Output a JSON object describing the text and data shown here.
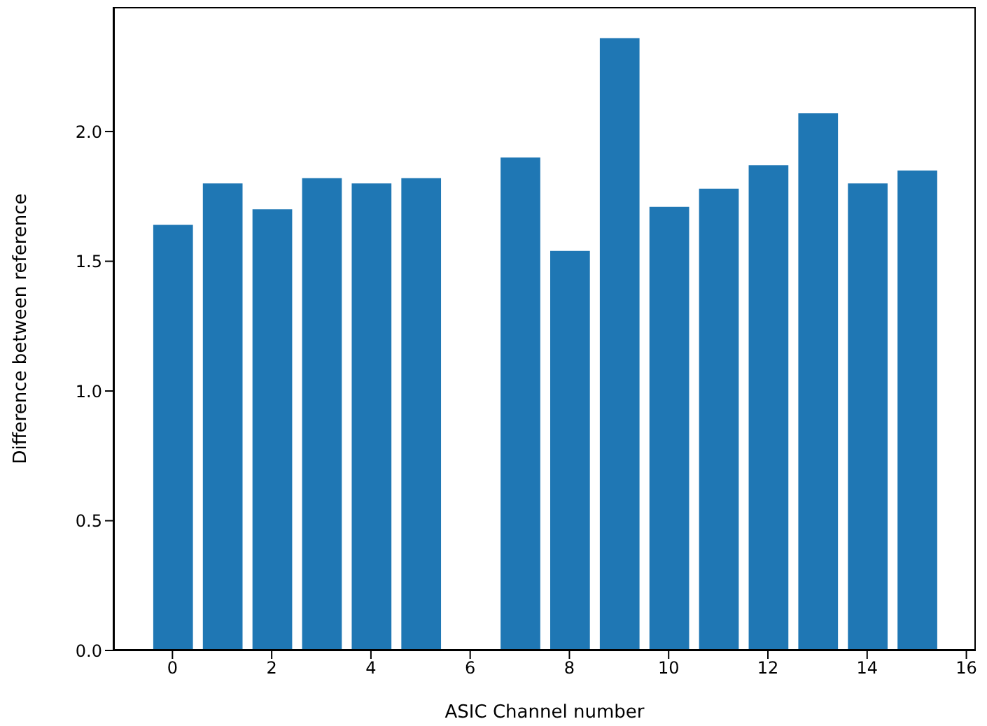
{
  "chart_data": {
    "type": "bar",
    "xlabel": "ASIC Channel number",
    "ylabel": "Difference between reference",
    "x": [
      0,
      1,
      2,
      3,
      4,
      5,
      6,
      7,
      8,
      9,
      10,
      11,
      12,
      13,
      14,
      15
    ],
    "values": [
      1.64,
      1.8,
      1.7,
      1.82,
      1.8,
      1.82,
      null,
      1.9,
      1.54,
      2.36,
      1.71,
      1.78,
      1.87,
      2.07,
      1.8,
      1.85
    ],
    "color": "#1f77b4",
    "xlim": [
      -1.19,
      16.19
    ],
    "xticks": [
      0,
      2,
      4,
      6,
      8,
      10,
      12,
      14,
      16
    ],
    "ylim": [
      0,
      2.48
    ],
    "yticks": [
      {
        "value": 0,
        "label": "0.0"
      },
      0.5,
      {
        "value": 1,
        "label": "1.0"
      },
      1.5,
      {
        "value": 2,
        "label": "2.0"
      }
    ],
    "grid": false
  }
}
